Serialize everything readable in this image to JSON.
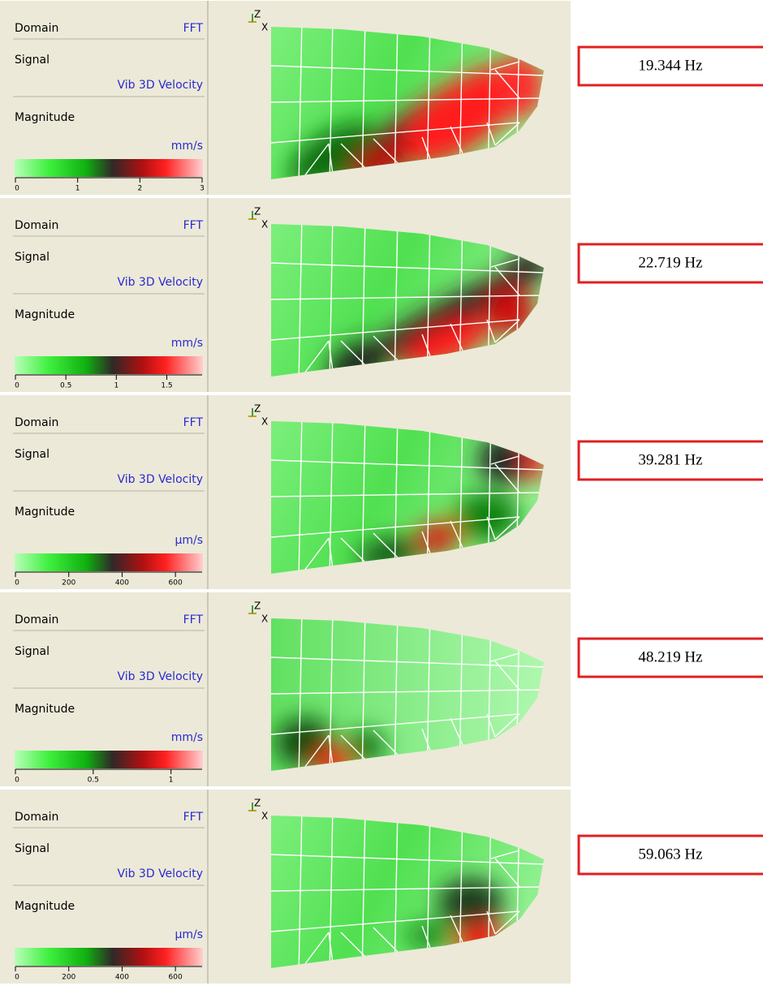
{
  "panels": [
    {
      "domain_label": "Domain",
      "domain_value": "FFT",
      "signal_label": "Signal",
      "signal_value": "Vib 3D Velocity",
      "magnitude_label": "Magnitude",
      "unit": "mm/s",
      "scale_range": [
        0,
        3
      ],
      "scale_ticks": [
        0,
        1,
        2,
        3
      ],
      "axis_labels": [
        "Z",
        "X"
      ],
      "frequency": "19.344 Hz"
    },
    {
      "domain_label": "Domain",
      "domain_value": "FFT",
      "signal_label": "Signal",
      "signal_value": "Vib 3D Velocity",
      "magnitude_label": "Magnitude",
      "unit": "mm/s",
      "scale_range": [
        0,
        1.85
      ],
      "scale_ticks": [
        0,
        0.5,
        1,
        1.5
      ],
      "axis_labels": [
        "Z",
        "X"
      ],
      "frequency": "22.719 Hz"
    },
    {
      "domain_label": "Domain",
      "domain_value": "FFT",
      "signal_label": "Signal",
      "signal_value": "Vib 3D Velocity",
      "magnitude_label": "Magnitude",
      "unit": "µm/s",
      "scale_range": [
        0,
        700
      ],
      "scale_ticks": [
        0,
        200,
        400,
        600
      ],
      "axis_labels": [
        "Z",
        "X"
      ],
      "frequency": "39.281 Hz"
    },
    {
      "domain_label": "Domain",
      "domain_value": "FFT",
      "signal_label": "Signal",
      "signal_value": "Vib 3D Velocity",
      "magnitude_label": "Magnitude",
      "unit": "mm/s",
      "scale_range": [
        0,
        1.2
      ],
      "scale_ticks": [
        0,
        0.5,
        1
      ],
      "axis_labels": [
        "Z",
        "X"
      ],
      "frequency": "48.219 Hz"
    },
    {
      "domain_label": "Domain",
      "domain_value": "FFT",
      "signal_label": "Signal",
      "signal_value": "Vib 3D Velocity",
      "magnitude_label": "Magnitude",
      "unit": "µm/s",
      "scale_range": [
        0,
        700
      ],
      "scale_ticks": [
        0,
        200,
        400,
        600
      ],
      "axis_labels": [
        "Z",
        "X"
      ],
      "frequency": "59.063 Hz"
    }
  ]
}
